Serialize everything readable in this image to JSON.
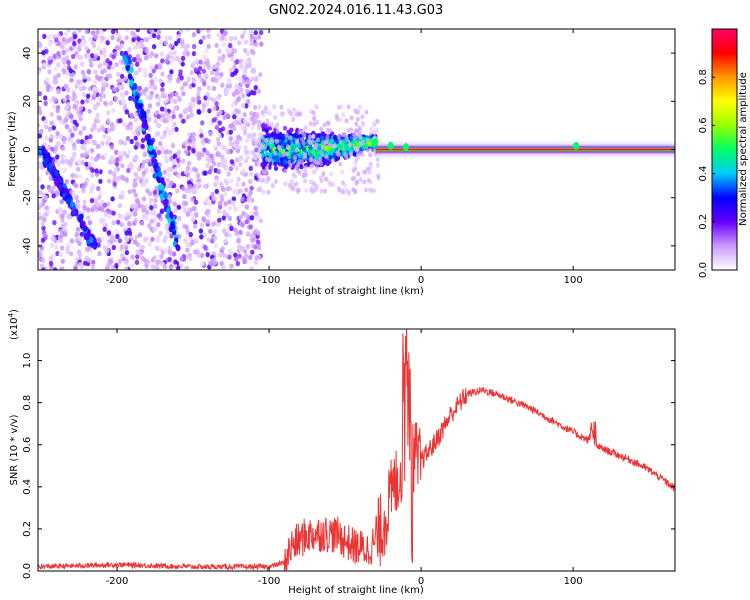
{
  "title": "GN02.2024.016.11.43.G03",
  "chart_data": [
    {
      "type": "heatmap",
      "xlabel": "Height of straight line (km)",
      "ylabel": "Frequency (Hz)",
      "xlim": [
        -252,
        167
      ],
      "ylim": [
        -50,
        50
      ],
      "xticks": [
        -200,
        -100,
        0,
        100
      ],
      "yticks": [
        -40,
        -20,
        0,
        20,
        40
      ],
      "colorbar": {
        "label": "Normalized spectral amplitude",
        "range": [
          0.0,
          1.0
        ],
        "ticks": [
          0.0,
          0.2,
          0.4,
          0.6,
          0.8
        ],
        "colors": [
          "#ffffff",
          "#cc99ff",
          "#6600ff",
          "#0000ff",
          "#00ccff",
          "#00ff66",
          "#99ff00",
          "#ffff00",
          "#ff9900",
          "#ff0000",
          "#ff0066"
        ]
      },
      "features": [
        {
          "description": "diffuse low-amplitude noise",
          "x_range": [
            -252,
            -105
          ],
          "freq_range": [
            -50,
            50
          ],
          "amplitude": 0.2
        },
        {
          "description": "chirping streak 1",
          "points": [
            [
              -195,
              40
            ],
            [
              -160,
              -40
            ]
          ],
          "amplitude": 0.35
        },
        {
          "description": "chirping streak 2",
          "points": [
            [
              -250,
              0
            ],
            [
              -215,
              -40
            ]
          ],
          "amplitude": 0.3
        },
        {
          "description": "converging cluster",
          "x_range": [
            -105,
            -30
          ],
          "freq_range": [
            -12,
            12
          ],
          "amplitude": 0.45
        },
        {
          "description": "steady carrier line",
          "x_range": [
            -30,
            167
          ],
          "freq": 0,
          "amplitude": 1.0
        }
      ]
    },
    {
      "type": "line",
      "xlabel": "Height of straight line (km)",
      "ylabel": "SNR (10 * v/v)",
      "y_scale_note": "(x10",
      "y_scale_exp": "4",
      "y_scale_close": ")",
      "xlim": [
        -252,
        167
      ],
      "ylim": [
        0,
        1.15
      ],
      "xticks": [
        -200,
        -100,
        0,
        100
      ],
      "yticks": [
        0.0,
        0.2,
        0.4,
        0.6,
        0.8,
        1.0
      ],
      "series": [
        {
          "color": "#ee3333",
          "x": [
            -252,
            -200,
            -150,
            -100,
            -90,
            -85,
            -75,
            -65,
            -55,
            -45,
            -35,
            -30,
            -25,
            -20,
            -15,
            -10,
            -8,
            -6,
            -4,
            -2,
            0,
            10,
            20,
            30,
            40,
            50,
            60,
            70,
            80,
            90,
            100,
            110,
            112,
            114,
            120,
            130,
            140,
            150,
            160,
            167
          ],
          "y": [
            0.02,
            0.03,
            0.02,
            0.02,
            0.04,
            0.12,
            0.17,
            0.18,
            0.17,
            0.12,
            0.1,
            0.14,
            0.22,
            0.35,
            0.45,
            0.55,
            0.7,
            0.5,
            0.58,
            0.5,
            0.52,
            0.62,
            0.75,
            0.84,
            0.86,
            0.84,
            0.81,
            0.78,
            0.74,
            0.7,
            0.66,
            0.62,
            0.68,
            0.6,
            0.58,
            0.55,
            0.52,
            0.48,
            0.43,
            0.39
          ]
        }
      ]
    }
  ]
}
